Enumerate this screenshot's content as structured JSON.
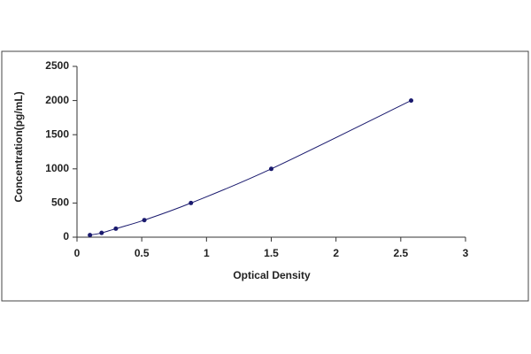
{
  "chart_data": {
    "type": "scatter",
    "x_label": "Optical Density",
    "y_label": "Concentration(pg/mL)",
    "series": [
      {
        "color": "#1a1a6e",
        "x": [
          0.1,
          0.19,
          0.3,
          0.52,
          0.88,
          1.5,
          2.58
        ],
        "values": [
          31.25,
          62.5,
          125,
          250,
          500,
          1000,
          2000
        ]
      }
    ],
    "curve": true,
    "xlim": [
      0,
      3
    ],
    "xticks": [
      0,
      0.5,
      1,
      1.5,
      2,
      2.5,
      3
    ],
    "ylim": [
      0,
      2500
    ],
    "yticks": [
      0,
      500,
      1000,
      1500,
      2000,
      2500
    ]
  }
}
